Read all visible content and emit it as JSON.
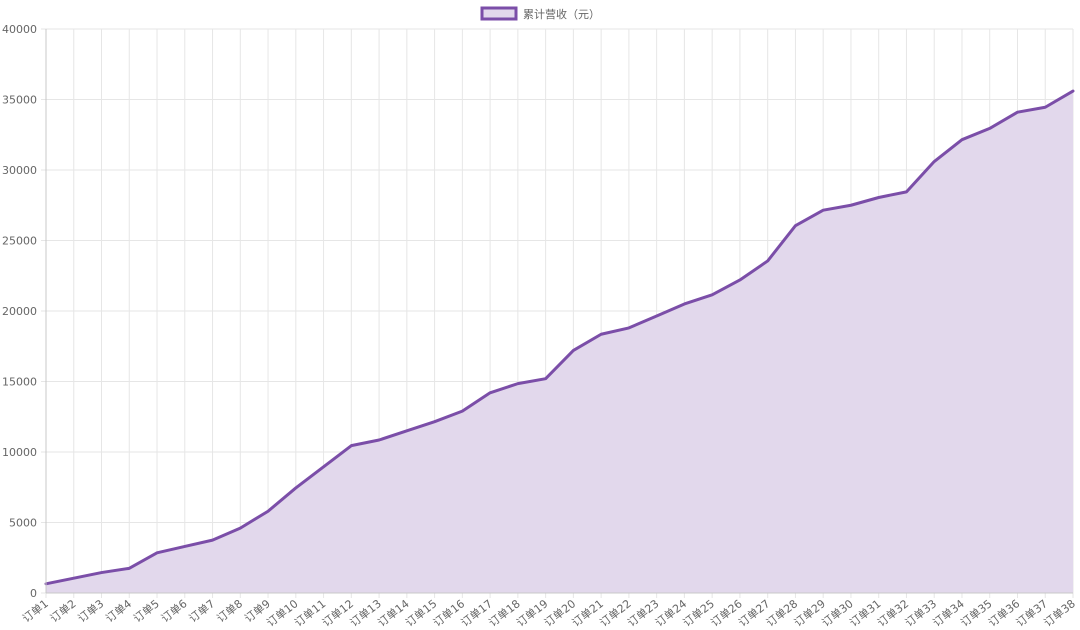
{
  "chart_data": {
    "type": "area",
    "categories": [
      "订单1",
      "订单2",
      "订单3",
      "订单4",
      "订单5",
      "订单6",
      "订单7",
      "订单8",
      "订单9",
      "订单10",
      "订单11",
      "订单12",
      "订单13",
      "订单14",
      "订单15",
      "订单16",
      "订单17",
      "订单18",
      "订单19",
      "订单20",
      "订单21",
      "订单22",
      "订单23",
      "订单24",
      "订单25",
      "订单26",
      "订单27",
      "订单28",
      "订单29",
      "订单30",
      "订单31",
      "订单32",
      "订单33",
      "订单34",
      "订单35",
      "订单36",
      "订单37",
      "订单38"
    ],
    "series": [
      {
        "name": "累计营收（元）",
        "values": [
          650,
          1050,
          1450,
          1750,
          2850,
          3300,
          3750,
          4600,
          5800,
          7450,
          8950,
          10450,
          10850,
          11500,
          12150,
          12900,
          14200,
          14850,
          15200,
          17200,
          18350,
          18800,
          19650,
          20500,
          21150,
          22200,
          23550,
          26050,
          27150,
          27500,
          28050,
          28450,
          30600,
          32150,
          32950,
          34100,
          34450,
          35600
        ],
        "color": "#7b4ea8",
        "fill": "#e2d8ec"
      }
    ],
    "ylim": [
      0,
      40000
    ],
    "yticks": [
      0,
      5000,
      10000,
      15000,
      20000,
      25000,
      30000,
      35000,
      40000
    ],
    "grid": true,
    "legend_position": "top-center",
    "title": "",
    "xlabel": "",
    "ylabel": ""
  }
}
